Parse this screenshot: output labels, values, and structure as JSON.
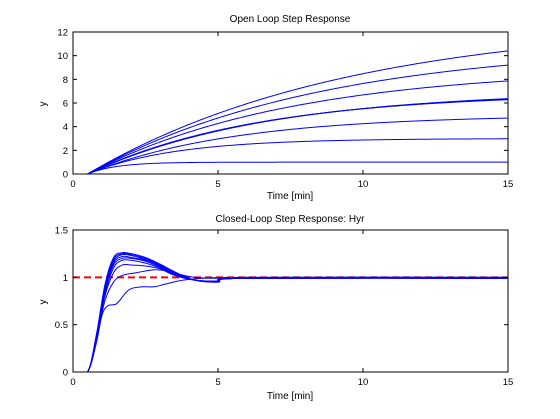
{
  "chart_data": [
    {
      "type": "line",
      "title": "Open Loop Step Response",
      "xlabel": "Time [min]",
      "ylabel": "y",
      "xlim": [
        0,
        15
      ],
      "ylim": [
        0,
        12
      ],
      "xticks": [
        0,
        5,
        10,
        15
      ],
      "yticks": [
        0,
        2,
        4,
        6,
        8,
        10,
        12
      ],
      "grid": false,
      "line_color": "#0000ff",
      "model": "first order plus dead time: y = K*(1-exp(-(t-L)/T)), t>L",
      "dead_time": 0.5,
      "series": [
        {
          "K": 1.0,
          "T": 1.0
        },
        {
          "K": 3.0,
          "T": 3.0
        },
        {
          "K": 5.0,
          "T": 5.0
        },
        {
          "K": 6.84,
          "T": 5.8
        },
        {
          "K": 6.95,
          "T": 6.0
        },
        {
          "K": 7.05,
          "T": 6.2
        },
        {
          "K": 9.0,
          "T": 7.0
        },
        {
          "K": 11.0,
          "T": 8.0
        },
        {
          "K": 13.0,
          "T": 9.0
        }
      ]
    },
    {
      "type": "line",
      "title": "Closed-Loop Step Response: Hyr",
      "xlabel": "Time [min]",
      "ylabel": "y",
      "xlim": [
        0,
        15
      ],
      "ylim": [
        0,
        1.5
      ],
      "xticks": [
        0,
        5,
        10,
        15
      ],
      "yticks": [
        0,
        0.5,
        1,
        1.5
      ],
      "grid": false,
      "line_color": "#0000ff",
      "reference": {
        "value": 1,
        "color": "#ff0000",
        "style": "dashed"
      },
      "series": [
        {
          "points": [
            [
              0,
              0
            ],
            [
              0.5,
              0
            ],
            [
              0.8,
              0.3
            ],
            [
              1.0,
              0.6
            ],
            [
              1.2,
              0.7
            ],
            [
              1.5,
              0.72
            ],
            [
              1.8,
              0.83
            ],
            [
              2.0,
              0.88
            ],
            [
              2.4,
              0.9
            ],
            [
              2.8,
              0.9
            ],
            [
              3.2,
              0.93
            ],
            [
              3.8,
              0.97
            ],
            [
              4.5,
              0.99
            ],
            [
              6,
              1.0
            ],
            [
              15,
              1.0
            ]
          ]
        },
        {
          "points": [
            [
              0,
              0
            ],
            [
              0.5,
              0
            ],
            [
              0.8,
              0.35
            ],
            [
              1.1,
              0.75
            ],
            [
              1.4,
              0.95
            ],
            [
              1.7,
              1.02
            ],
            [
              2.2,
              1.05
            ],
            [
              2.8,
              1.08
            ],
            [
              3.2,
              1.07
            ],
            [
              3.7,
              1.03
            ],
            [
              4.2,
              1.0
            ],
            [
              5,
              0.99
            ],
            [
              6,
              1.0
            ],
            [
              15,
              1.0
            ]
          ]
        },
        {
          "points": [
            [
              0,
              0
            ],
            [
              0.5,
              0
            ],
            [
              0.8,
              0.35
            ],
            [
              1.1,
              0.8
            ],
            [
              1.4,
              1.05
            ],
            [
              1.7,
              1.13
            ],
            [
              2.0,
              1.13
            ],
            [
              2.5,
              1.12
            ],
            [
              3.0,
              1.09
            ],
            [
              3.5,
              1.02
            ],
            [
              4.2,
              0.97
            ],
            [
              5,
              0.96
            ],
            [
              6,
              0.99
            ],
            [
              15,
              1.0
            ]
          ]
        },
        {
          "points": [
            [
              0,
              0
            ],
            [
              0.5,
              0
            ],
            [
              0.8,
              0.35
            ],
            [
              1.1,
              0.82
            ],
            [
              1.4,
              1.1
            ],
            [
              1.7,
              1.18
            ],
            [
              2.0,
              1.18
            ],
            [
              2.5,
              1.15
            ],
            [
              3.0,
              1.1
            ],
            [
              3.5,
              1.03
            ],
            [
              4.2,
              0.97
            ],
            [
              5,
              0.96
            ],
            [
              6,
              0.99
            ],
            [
              15,
              0.99
            ]
          ]
        },
        {
          "points": [
            [
              0,
              0
            ],
            [
              0.5,
              0
            ],
            [
              0.8,
              0.36
            ],
            [
              1.1,
              0.85
            ],
            [
              1.4,
              1.13
            ],
            [
              1.7,
              1.2
            ],
            [
              2.0,
              1.2
            ],
            [
              2.5,
              1.17
            ],
            [
              3.0,
              1.11
            ],
            [
              3.5,
              1.04
            ],
            [
              4.2,
              0.97
            ],
            [
              5,
              0.96
            ],
            [
              6,
              0.99
            ],
            [
              15,
              0.99
            ]
          ]
        },
        {
          "points": [
            [
              0,
              0
            ],
            [
              0.5,
              0
            ],
            [
              0.8,
              0.36
            ],
            [
              1.1,
              0.86
            ],
            [
              1.4,
              1.15
            ],
            [
              1.7,
              1.22
            ],
            [
              2.0,
              1.21
            ],
            [
              2.5,
              1.18
            ],
            [
              3.0,
              1.12
            ],
            [
              3.5,
              1.04
            ],
            [
              4.2,
              0.97
            ],
            [
              5,
              0.96
            ],
            [
              6,
              0.99
            ],
            [
              15,
              0.99
            ]
          ]
        },
        {
          "points": [
            [
              0,
              0
            ],
            [
              0.5,
              0
            ],
            [
              0.8,
              0.37
            ],
            [
              1.1,
              0.88
            ],
            [
              1.4,
              1.17
            ],
            [
              1.7,
              1.24
            ],
            [
              2.0,
              1.23
            ],
            [
              2.5,
              1.19
            ],
            [
              3.0,
              1.13
            ],
            [
              3.5,
              1.05
            ],
            [
              4.2,
              0.97
            ],
            [
              5,
              0.96
            ],
            [
              6,
              0.99
            ],
            [
              15,
              0.99
            ]
          ]
        },
        {
          "points": [
            [
              0,
              0
            ],
            [
              0.5,
              0
            ],
            [
              0.8,
              0.38
            ],
            [
              1.1,
              0.9
            ],
            [
              1.4,
              1.19
            ],
            [
              1.7,
              1.25
            ],
            [
              2.0,
              1.24
            ],
            [
              2.5,
              1.2
            ],
            [
              3.0,
              1.13
            ],
            [
              3.5,
              1.05
            ],
            [
              4.2,
              0.97
            ],
            [
              5,
              0.95
            ],
            [
              6,
              0.99
            ],
            [
              15,
              0.99
            ]
          ]
        },
        {
          "points": [
            [
              0,
              0
            ],
            [
              0.5,
              0
            ],
            [
              0.8,
              0.38
            ],
            [
              1.1,
              0.92
            ],
            [
              1.4,
              1.21
            ],
            [
              1.7,
              1.26
            ],
            [
              2.0,
              1.25
            ],
            [
              2.5,
              1.21
            ],
            [
              3.0,
              1.14
            ],
            [
              3.5,
              1.06
            ],
            [
              4.2,
              0.97
            ],
            [
              5,
              0.95
            ],
            [
              6,
              0.99
            ],
            [
              15,
              0.99
            ]
          ]
        }
      ]
    }
  ]
}
